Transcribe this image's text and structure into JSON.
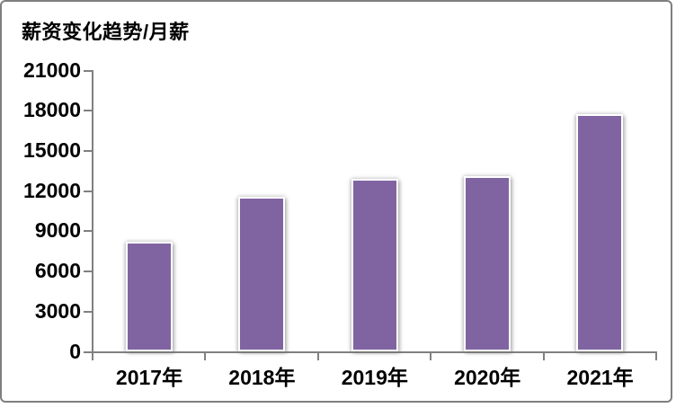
{
  "frame": {
    "border_color": "#7f7f7f",
    "background_color": "#ffffff"
  },
  "chart_data": {
    "type": "bar",
    "title": "薪资变化趋势/月薪",
    "categories": [
      "2017年",
      "2018年",
      "2019年",
      "2020年",
      "2021年"
    ],
    "values": [
      8250,
      11600,
      12900,
      13150,
      17750
    ],
    "xlabel": "",
    "ylabel": "",
    "ylim": [
      0,
      21000
    ],
    "ytick_step": 3000,
    "ytick_labels": [
      "0",
      "3000",
      "6000",
      "9000",
      "12000",
      "15000",
      "18000",
      "21000"
    ],
    "grid": false,
    "legend_position": "none",
    "bar_color": "#8064A2",
    "bar_border_color": "#ffffff",
    "axis_color": "#808080",
    "text_color": "#000000"
  }
}
